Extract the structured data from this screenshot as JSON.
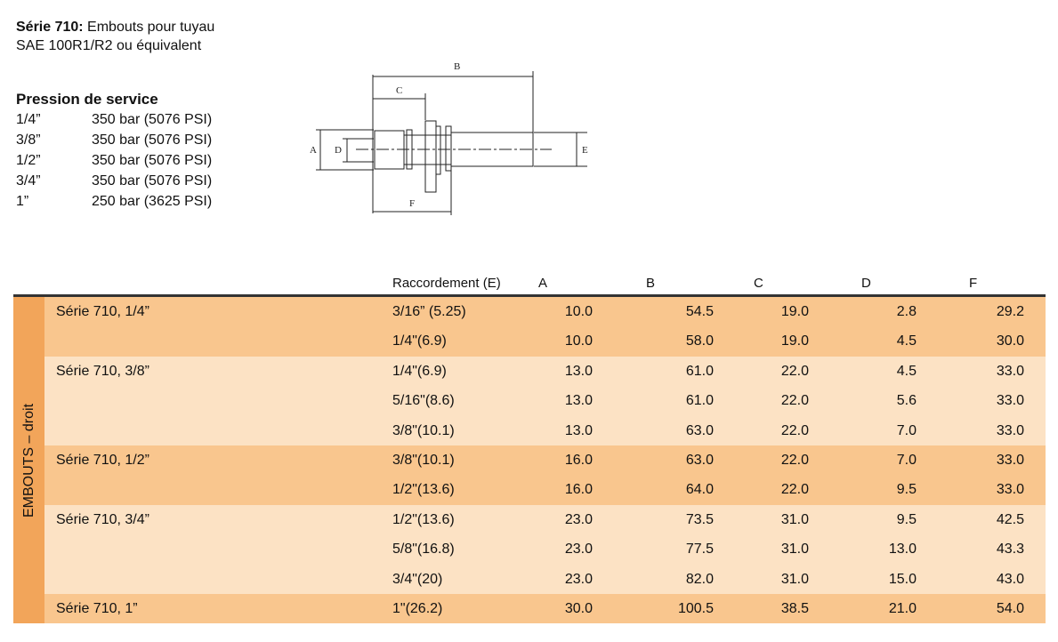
{
  "title": {
    "bold": "Série 710:",
    "rest": " Embouts pour tuyau",
    "line2": "SAE 100R1/R2 ou équivalent"
  },
  "pressure": {
    "heading": "Pression de service",
    "rows": [
      {
        "size": "1/4”",
        "value": "350 bar (5076 PSI)"
      },
      {
        "size": "3/8”",
        "value": "350 bar (5076 PSI)"
      },
      {
        "size": "1/2”",
        "value": "350 bar (5076 PSI)"
      },
      {
        "size": "3/4”",
        "value": "350 bar (5076 PSI)"
      },
      {
        "size": "1”",
        "value": "250 bar (3625 PSI)"
      }
    ]
  },
  "diagram_labels": {
    "A": "A",
    "B": "B",
    "C": "C",
    "D": "D",
    "E": "E",
    "F": "F"
  },
  "table": {
    "side_label": "EMBOUTS – droit",
    "headers": {
      "conn": "Raccordement (E)",
      "A": "A",
      "B": "B",
      "C": "C",
      "D": "D",
      "F": "F"
    },
    "colors": {
      "side": "#f2a55a",
      "group_dark": "#f9c68e",
      "group_light": "#fce2c4"
    },
    "rows": [
      {
        "group": "Série 710, 1/4”",
        "conn": "3/16” (5.25)",
        "A": "10.0",
        "B": "54.5",
        "C": "19.0",
        "D": "2.8",
        "F": "29.2",
        "shade": 0
      },
      {
        "group": "",
        "conn": "1/4\"(6.9)",
        "A": "10.0",
        "B": "58.0",
        "C": "19.0",
        "D": "4.5",
        "F": "30.0",
        "shade": 0
      },
      {
        "group": "Série 710, 3/8”",
        "conn": "1/4\"(6.9)",
        "A": "13.0",
        "B": "61.0",
        "C": "22.0",
        "D": "4.5",
        "F": "33.0",
        "shade": 1
      },
      {
        "group": "",
        "conn": "5/16\"(8.6)",
        "A": "13.0",
        "B": "61.0",
        "C": "22.0",
        "D": "5.6",
        "F": "33.0",
        "shade": 1
      },
      {
        "group": "",
        "conn": "3/8\"(10.1)",
        "A": "13.0",
        "B": "63.0",
        "C": "22.0",
        "D": "7.0",
        "F": "33.0",
        "shade": 1
      },
      {
        "group": "Série 710, 1/2”",
        "conn": "3/8\"(10.1)",
        "A": "16.0",
        "B": "63.0",
        "C": "22.0",
        "D": "7.0",
        "F": "33.0",
        "shade": 0
      },
      {
        "group": "",
        "conn": "1/2\"(13.6)",
        "A": "16.0",
        "B": "64.0",
        "C": "22.0",
        "D": "9.5",
        "F": "33.0",
        "shade": 0
      },
      {
        "group": "Série 710, 3/4”",
        "conn": "1/2\"(13.6)",
        "A": "23.0",
        "B": "73.5",
        "C": "31.0",
        "D": "9.5",
        "F": "42.5",
        "shade": 1
      },
      {
        "group": "",
        "conn": "5/8\"(16.8)",
        "A": "23.0",
        "B": "77.5",
        "C": "31.0",
        "D": "13.0",
        "F": "43.3",
        "shade": 1
      },
      {
        "group": "",
        "conn": "3/4\"(20)",
        "A": "23.0",
        "B": "82.0",
        "C": "31.0",
        "D": "15.0",
        "F": "43.0",
        "shade": 1
      },
      {
        "group": "Série 710, 1”",
        "conn": "1\"(26.2)",
        "A": "30.0",
        "B": "100.5",
        "C": "38.5",
        "D": "21.0",
        "F": "54.0",
        "shade": 0
      }
    ]
  }
}
